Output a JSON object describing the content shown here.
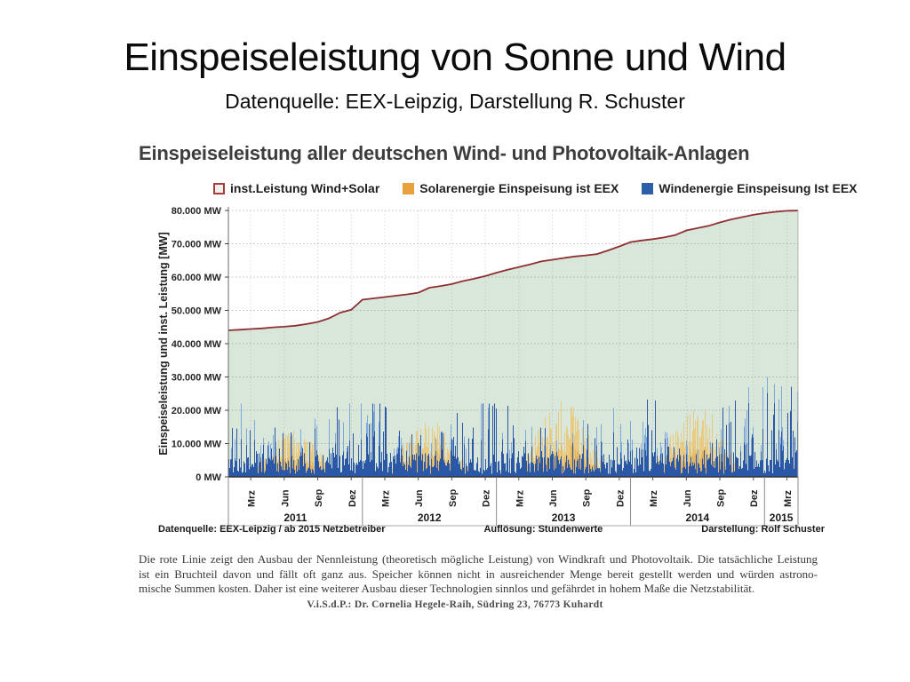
{
  "slide": {
    "title": "Einspeiseleistung von Sonne und Wind",
    "subtitle": "Datenquelle: EEX-Leipzig, Darstellung R. Schuster"
  },
  "chart": {
    "title": "Einspeiseleistung aller deutschen Wind- und Photovoltaik-Anlagen",
    "legend": [
      {
        "label": "inst.Leistung Wind+Solar",
        "swatch_fill": "#eef0ea",
        "swatch_border": "#a83c3c"
      },
      {
        "label": "Solarenergie Einspeisung ist EEX",
        "swatch_fill": "#e8a23b",
        "swatch_border": "#e8a23b"
      },
      {
        "label": "Windenergie Einspeisung Ist EEX",
        "swatch_fill": "#2d5ea8",
        "swatch_border": "#2d5ea8"
      }
    ],
    "y_axis": {
      "title": "Einspeiseleistung und  inst. Leistung [MW]",
      "tick_labels": [
        "80.000 MW",
        "70.000 MW",
        "60.000 MW",
        "50.000 MW",
        "40.000 MW",
        "30.000 MW",
        "20.000 MW",
        "10.000 MW",
        "0 MW"
      ]
    },
    "x_axis": {
      "month_tick_labels": [
        "Mrz",
        "Jun",
        "Sep",
        "Dez"
      ],
      "year_labels": [
        "2011",
        "2012",
        "2013",
        "2014",
        "2015"
      ]
    },
    "footnotes": {
      "left": "Datenquelle:  EEX-Leipzig   /  ab 2015 Netzbetreiber",
      "center": "Auflösung: Stundenwerte",
      "right": "Darstellung: Rolf Schuster"
    }
  },
  "chart_data": {
    "type": "line",
    "title": "Einspeiseleistung aller deutschen Wind- und Photovoltaik-Anlagen",
    "ylabel": "Einspeiseleistung und inst. Leistung [MW]",
    "ylim": [
      0,
      80000
    ],
    "y_tick_step_mw": 10000,
    "x_range": [
      "2011-01",
      "2015-03"
    ],
    "x_tick_months": [
      "Mrz",
      "Jun",
      "Sep",
      "Dez"
    ],
    "years": [
      "2011",
      "2012",
      "2013",
      "2014",
      "2015"
    ],
    "grid": "dotted horizontal every 10.000 MW, dotted vertical quarterly",
    "legend_position": "top",
    "resolution_note": "Stundenwerte (hourly values), readable only as spiky envelope",
    "series": [
      {
        "name": "inst.Leistung Wind+Solar",
        "type": "line_with_area",
        "color": "#8e2f33",
        "area_fill": "#d9e7db",
        "x_months_from_2011_01": "0..50 (monthly)",
        "values_mw": [
          44000,
          44200,
          44400,
          44600,
          44900,
          45100,
          45400,
          45900,
          46500,
          47600,
          49300,
          50200,
          53200,
          53600,
          54000,
          54400,
          54800,
          55300,
          56800,
          57300,
          57900,
          58800,
          59500,
          60300,
          61300,
          62200,
          63000,
          63800,
          64700,
          65200,
          65700,
          66200,
          66500,
          66900,
          68000,
          69200,
          70500,
          71000,
          71400,
          71900,
          72600,
          74000,
          74700,
          75400,
          76400,
          77300,
          78000,
          78700,
          79200,
          79600,
          79900
        ]
      },
      {
        "name": "Windenergie Einspeisung Ist EEX",
        "type": "hourly_spikes_stochastic",
        "color": "#2b57a7",
        "color_light": "#7fa9da",
        "envelope_mw": {
          "dense_base_max": 7100,
          "peak_by_year": [
            22000,
            22000,
            22000,
            24000,
            30000
          ],
          "late_2014_peak": 27000,
          "seasonality": "higher in winter, spikes near 0 possible anytime"
        }
      },
      {
        "name": "Solarenergie Einspeisung ist EEX",
        "type": "hourly_spikes_stochastic",
        "color": "#e9c87e",
        "color_dark": "#dfaf5e",
        "envelope_mw": {
          "summer_peak_by_year": [
            14000,
            17500,
            23000,
            22500,
            12000
          ],
          "winter_max": 5000,
          "seasonality": "strong summer maximum, near 0 in winter"
        }
      }
    ],
    "render_seed": 1337
  },
  "footer": {
    "lines": [
      "Die rote Linie zeigt den Ausbau der Nennleistung (theoretisch mögliche Leistung) von Windkraft und Photovoltaik. Die tatsächliche Leistung",
      "ist ein Bruchteil davon und fällt oft ganz aus. Speicher können nicht in ausreichender Menge bereit gestellt werden und würden astrono-",
      "mische Summen kosten. Daher ist eine weiterer Ausbau dieser Technologien sinnlos und gefährdet in hohem Maße die Netzstabilität."
    ],
    "imprint": "V.i.S.d.P.: Dr. Cornelia Hegele-Raih, Südring 23, 76773 Kuhardt"
  }
}
